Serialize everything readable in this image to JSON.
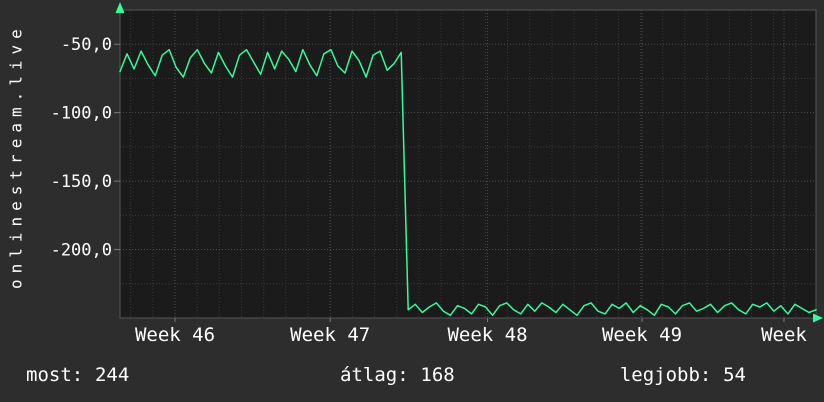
{
  "chart_data": {
    "type": "line",
    "title": "",
    "ylabel": "onlinestream.live",
    "xlabel": "",
    "ylim": [
      -250,
      -25
    ],
    "grid": true,
    "legend": "none",
    "y_ticks": [
      {
        "value": -50,
        "label": "-50,0"
      },
      {
        "value": -100,
        "label": "-100,0"
      },
      {
        "value": -150,
        "label": "-150,0"
      },
      {
        "value": -200,
        "label": "-200,0"
      }
    ],
    "x_ticks": [
      {
        "pos": 0.079,
        "label": "Week 46"
      },
      {
        "pos": 0.302,
        "label": "Week 47"
      },
      {
        "pos": 0.528,
        "label": "Week 48"
      },
      {
        "pos": 0.75,
        "label": "Week 49"
      },
      {
        "pos": 0.954,
        "label": "Week"
      }
    ],
    "values": [
      -70,
      -57,
      -68,
      -55,
      -65,
      -73,
      -58,
      -54,
      -67,
      -74,
      -60,
      -54,
      -64,
      -71,
      -56,
      -66,
      -74,
      -58,
      -54,
      -63,
      -72,
      -56,
      -68,
      -55,
      -61,
      -70,
      -54,
      -65,
      -73,
      -57,
      -54,
      -66,
      -71,
      -55,
      -62,
      -74,
      -58,
      -55,
      -69,
      -64,
      -56,
      -244,
      -240,
      -246,
      -242,
      -239,
      -245,
      -248,
      -241,
      -243,
      -247,
      -240,
      -242,
      -248,
      -241,
      -239,
      -244,
      -247,
      -240,
      -245,
      -239,
      -242,
      -246,
      -240,
      -244,
      -248,
      -241,
      -239,
      -245,
      -247,
      -240,
      -243,
      -239,
      -246,
      -241,
      -244,
      -248,
      -240,
      -242,
      -247,
      -241,
      -239,
      -245,
      -243,
      -240,
      -246,
      -241,
      -239,
      -244,
      -247,
      -240,
      -242,
      -239,
      -245,
      -241,
      -247,
      -240,
      -243,
      -246,
      -244
    ],
    "footer_stats": [
      {
        "label": "most:",
        "value": "244"
      },
      {
        "label": "átlag:",
        "value": "168"
      },
      {
        "label": "legjobb:",
        "value": "54"
      }
    ],
    "colors": {
      "page_bg": "#2d2d2d",
      "plot_bg": "#1b1b1b",
      "grid_minor": "#383838",
      "grid_major": "#4d4d4d",
      "axis": "#555555",
      "tick": "#7a7a7a",
      "line": "#35fb9a",
      "arrow": "#35fb9a",
      "text": "#ffffff"
    }
  }
}
